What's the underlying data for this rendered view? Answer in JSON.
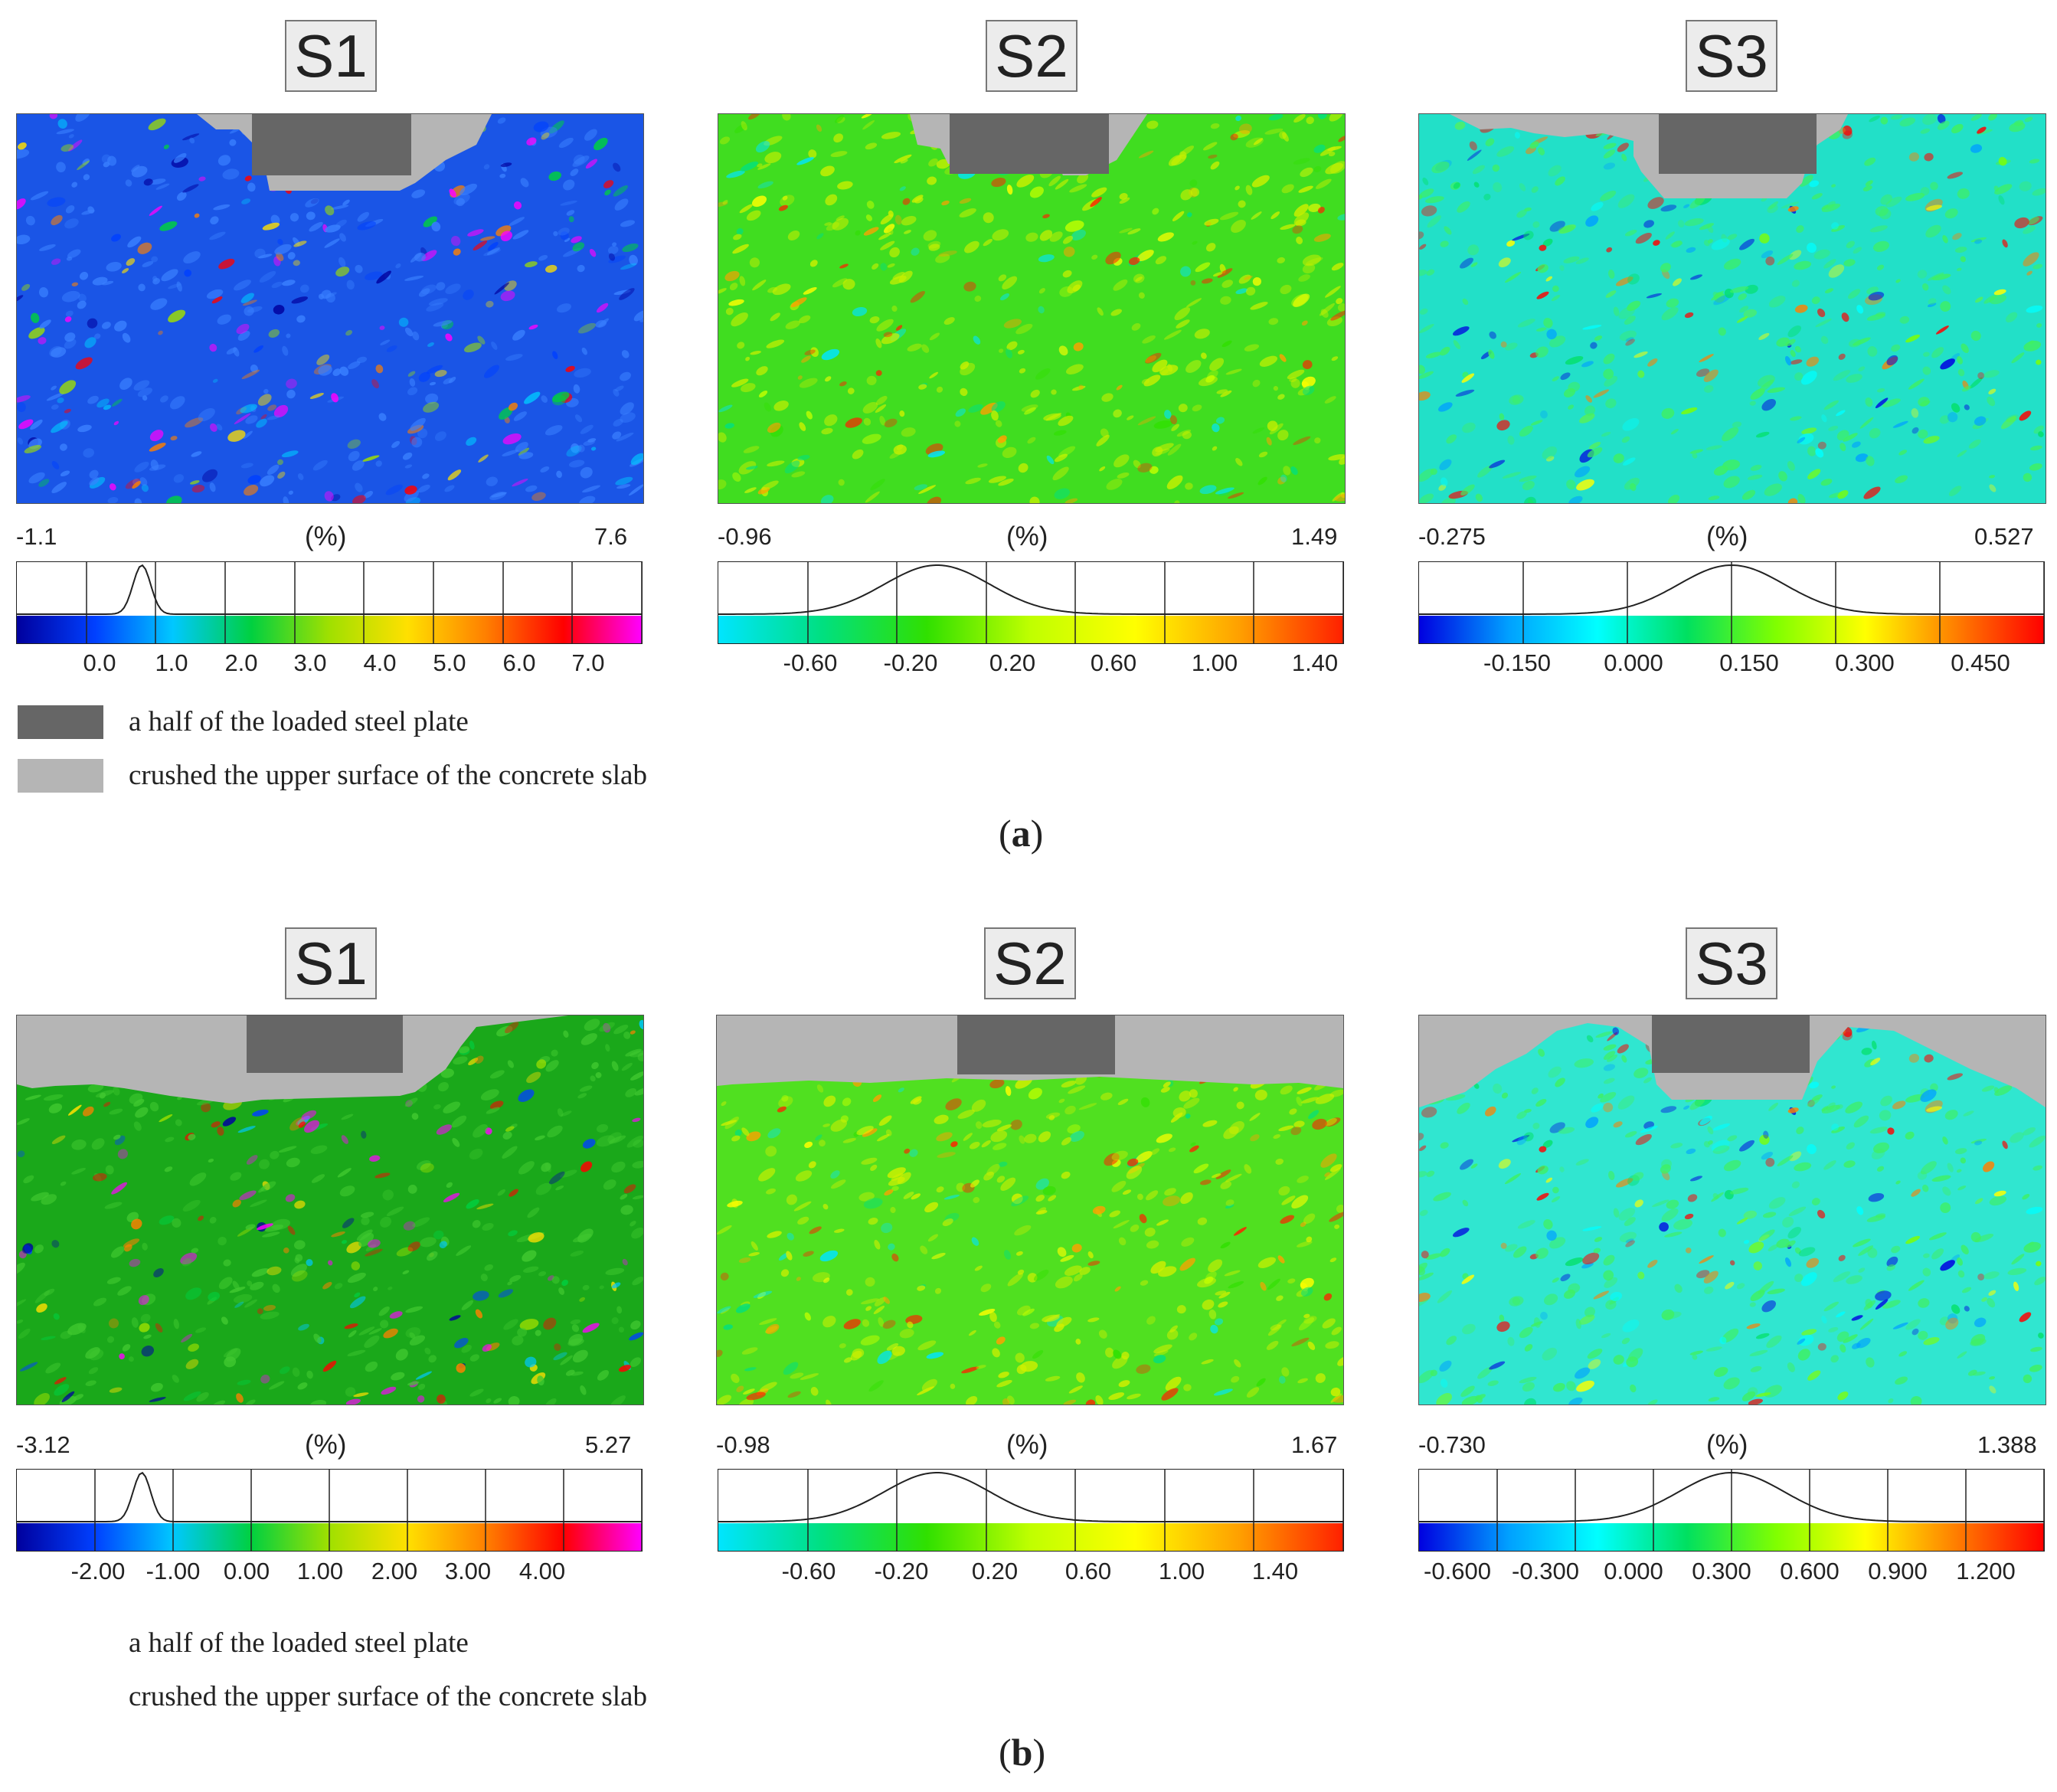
{
  "figure": {
    "unit": "(%)",
    "legend": {
      "steel_plate": "a half of the loaded steel plate",
      "crushed": "crushed the upper surface of the concrete slab",
      "steel_color": "#666666",
      "crushed_color": "#b5b5b5"
    },
    "rows": [
      {
        "label_open": "(",
        "label_letter": "a",
        "label_close": ")",
        "panels": [
          {
            "title": "S1",
            "min": "-1.1",
            "max": "7.6",
            "ticks": [
              "0.0",
              "1.0",
              "2.0",
              "3.0",
              "4.0",
              "5.0",
              "6.0",
              "7.0"
            ],
            "colorbar": [
              "#00009e",
              "#0040ff",
              "#00c8ff",
              "#00d040",
              "#a0e000",
              "#ffe000",
              "#ff8000",
              "#ff0000",
              "#ff00ff"
            ],
            "dominant": "#1a55e6",
            "secondary": "#3a80ff"
          },
          {
            "title": "S2",
            "min": "-0.96",
            "max": "1.49",
            "ticks": [
              "-0.60",
              "-0.20",
              "0.20",
              "0.60",
              "1.00",
              "1.40"
            ],
            "colorbar": [
              "#00e5ff",
              "#00e080",
              "#30e000",
              "#c0ff00",
              "#ffff00",
              "#ffa000",
              "#ff2000"
            ],
            "dominant": "#40dd20",
            "secondary": "#c8f000"
          },
          {
            "title": "S3",
            "min": "-0.275",
            "max": "0.527",
            "ticks": [
              "-0.150",
              "0.000",
              "0.150",
              "0.300",
              "0.450"
            ],
            "colorbar": [
              "#0000e0",
              "#00a0ff",
              "#00ffff",
              "#00e060",
              "#80ff00",
              "#ffff00",
              "#ff8000",
              "#ff0000"
            ],
            "dominant": "#22e0c8",
            "secondary": "#40f060"
          }
        ]
      },
      {
        "label_open": "(",
        "label_letter": "b",
        "label_close": ")",
        "panels": [
          {
            "title": "S1",
            "min": "-3.12",
            "max": "5.27",
            "ticks": [
              "-2.00",
              "-1.00",
              "0.00",
              "1.00",
              "2.00",
              "3.00",
              "4.00"
            ],
            "colorbar": [
              "#00009e",
              "#0040ff",
              "#00c8ff",
              "#00d040",
              "#a0e000",
              "#ffe000",
              "#ff8000",
              "#ff0000",
              "#ff00ff"
            ],
            "dominant": "#1aa81a",
            "secondary": "#40c830"
          },
          {
            "title": "S2",
            "min": "-0.98",
            "max": "1.67",
            "ticks": [
              "-0.60",
              "-0.20",
              "0.20",
              "0.60",
              "1.00",
              "1.40"
            ],
            "colorbar": [
              "#00e5ff",
              "#00e080",
              "#30e000",
              "#c0ff00",
              "#ffff00",
              "#ffa000",
              "#ff2000"
            ],
            "dominant": "#50e020",
            "secondary": "#d0f000"
          },
          {
            "title": "S3",
            "min": "-0.730",
            "max": "1.388",
            "ticks": [
              "-0.600",
              "-0.300",
              "0.000",
              "0.300",
              "0.600",
              "0.900",
              "1.200"
            ],
            "colorbar": [
              "#0000e0",
              "#00a0ff",
              "#00ffff",
              "#00e060",
              "#80ff00",
              "#ffff00",
              "#ff8000",
              "#ff0000"
            ],
            "dominant": "#30e6d0",
            "secondary": "#40f060"
          }
        ]
      }
    ]
  }
}
